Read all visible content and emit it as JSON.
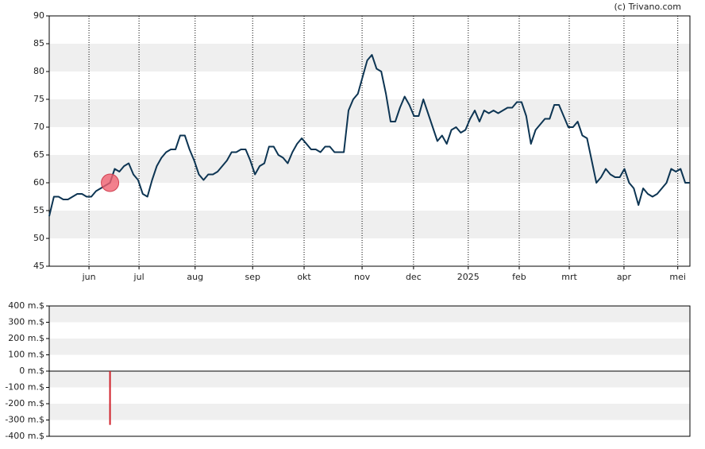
{
  "source": "(c) Trivano.com",
  "chart_data": [
    {
      "type": "line",
      "series": [
        {
          "color": "#0d3553",
          "values": [
            54,
            57.5,
            57.5,
            57,
            57,
            57.5,
            58,
            58,
            57.5,
            57.5,
            58.5,
            59,
            59.5,
            60,
            62.5,
            62,
            63,
            63.5,
            61.5,
            60.5,
            58,
            57.5,
            60.5,
            63,
            64.5,
            65.5,
            66,
            66,
            68.5,
            68.5,
            66,
            64,
            61.5,
            60.5,
            61.5,
            61.5,
            62,
            63,
            64,
            65.5,
            65.5,
            66,
            66,
            64,
            61.5,
            63,
            63.5,
            66.5,
            66.5,
            65,
            64.5,
            63.5,
            65.5,
            67,
            68,
            67,
            66,
            66,
            65.5,
            66.5,
            66.5,
            65.5,
            65.5,
            65.5,
            73,
            75,
            76,
            79,
            82,
            83,
            80.5,
            80,
            76,
            71,
            71,
            73.5,
            75.5,
            74,
            72,
            72,
            75,
            72.5,
            70,
            67.5,
            68.5,
            67,
            69.5,
            70,
            69,
            69.5,
            71.5,
            73,
            71,
            73,
            72.5,
            73,
            72.5,
            73,
            73.5,
            73.5,
            74.5,
            74.5,
            72,
            67,
            69.5,
            70.5,
            71.5,
            71.5,
            74,
            74,
            72,
            70,
            70,
            71,
            68.5,
            68,
            64,
            60,
            61,
            62.5,
            61.5,
            61,
            61,
            62.5,
            60,
            59,
            56,
            59,
            58,
            57.5,
            58,
            59,
            60,
            62.5,
            62,
            62.5,
            60,
            60
          ]
        }
      ],
      "marker": {
        "index": 13,
        "color": "#f06070"
      },
      "xlim": [
        0,
        137
      ],
      "xticks": [
        {
          "value": 8.5,
          "label": "jun"
        },
        {
          "value": 19.2,
          "label": "jul"
        },
        {
          "value": 31.2,
          "label": "aug"
        },
        {
          "value": 43.5,
          "label": "sep"
        },
        {
          "value": 54.5,
          "label": "okt"
        },
        {
          "value": 66.9,
          "label": "nov"
        },
        {
          "value": 77.9,
          "label": "dec"
        },
        {
          "value": 89.6,
          "label": "2025"
        },
        {
          "value": 100.5,
          "label": "feb"
        },
        {
          "value": 111.2,
          "label": "mrt"
        },
        {
          "value": 122.9,
          "label": "apr"
        },
        {
          "value": 134.4,
          "label": "mei"
        }
      ],
      "ylim": [
        45,
        90
      ],
      "yticks": [
        45,
        50,
        55,
        60,
        65,
        70,
        75,
        80,
        85,
        90
      ]
    },
    {
      "type": "bar",
      "x": [
        13
      ],
      "values": [
        -330
      ],
      "color": "#d0202a",
      "xlim": [
        0,
        137
      ],
      "ylim": [
        -400,
        400
      ],
      "yticks": [
        {
          "value": -400,
          "label": "-400 m.$"
        },
        {
          "value": -300,
          "label": "-300 m.$"
        },
        {
          "value": -200,
          "label": "-200 m.$"
        },
        {
          "value": -100,
          "label": "-100 m.$"
        },
        {
          "value": 0,
          "label": "0 m.$"
        },
        {
          "value": 100,
          "label": "100 m.$"
        },
        {
          "value": 200,
          "label": "200 m.$"
        },
        {
          "value": 300,
          "label": "300 m.$"
        },
        {
          "value": 400,
          "label": "400 m.$"
        }
      ]
    }
  ]
}
